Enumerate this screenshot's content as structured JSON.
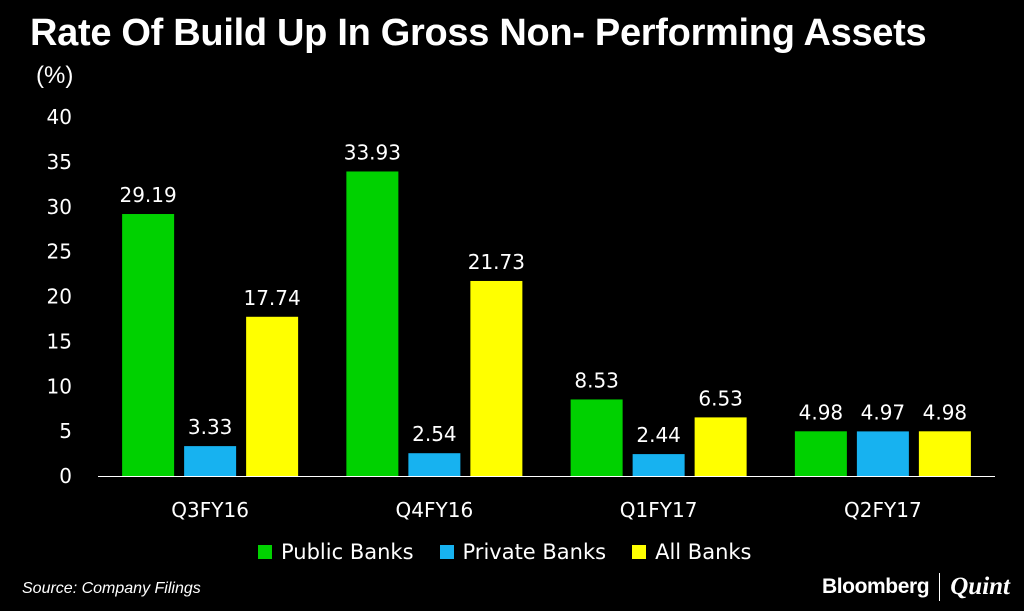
{
  "chart_data": {
    "type": "bar",
    "title": "Rate Of Build Up In Gross Non- Performing Assets",
    "ylabel": "(%)",
    "xlabel": "",
    "ylim": [
      0,
      40
    ],
    "yticks": [
      0,
      5,
      10,
      15,
      20,
      25,
      30,
      35,
      40
    ],
    "categories": [
      "Q3FY16",
      "Q4FY16",
      "Q1FY17",
      "Q2FY17"
    ],
    "series": [
      {
        "name": "Public Banks",
        "color": "#00d100",
        "values": [
          29.19,
          33.93,
          8.53,
          4.98
        ],
        "labels": [
          "29.19",
          "33.93",
          "8.53",
          "4.98"
        ]
      },
      {
        "name": "Private Banks",
        "color": "#17b2f0",
        "values": [
          3.33,
          2.54,
          2.44,
          4.97
        ],
        "labels": [
          "3.33",
          "2.54",
          "2.44",
          "4.97"
        ]
      },
      {
        "name": "All Banks",
        "color": "#ffff00",
        "values": [
          17.74,
          21.73,
          6.53,
          4.98
        ],
        "labels": [
          "17.74",
          "21.73",
          "6.53",
          "4.98"
        ]
      }
    ],
    "grid": false,
    "legend": "bottom"
  },
  "footer": {
    "source": "Source: Company Filings",
    "brand_primary": "Bloomberg",
    "brand_secondary": "Quint"
  }
}
